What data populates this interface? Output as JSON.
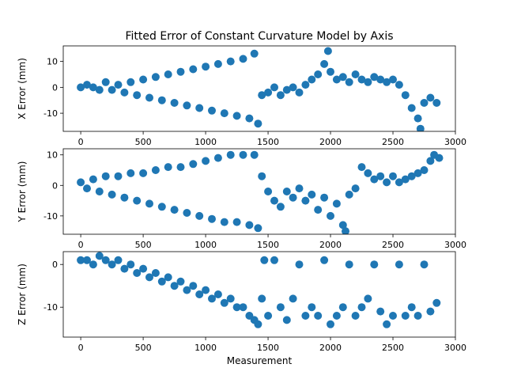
{
  "figure": {
    "title": "Fitted Error of Constant Curvature Model by Axis",
    "marker_color": "#1f77b4"
  },
  "chart_data": [
    {
      "type": "scatter",
      "ylabel": "X Error (mm)",
      "xlabel": "",
      "xlim": [
        -140,
        3000
      ],
      "ylim": [
        -17,
        16
      ],
      "xticks": [
        0,
        500,
        1000,
        1500,
        2000,
        2500,
        3000
      ],
      "yticks": [
        -10,
        0,
        10
      ],
      "series": [
        {
          "values": [
            [
              0,
              0
            ],
            [
              50,
              1
            ],
            [
              100,
              0
            ],
            [
              150,
              -1
            ],
            [
              200,
              2
            ],
            [
              250,
              -1
            ],
            [
              300,
              1
            ],
            [
              350,
              -2
            ],
            [
              400,
              2
            ],
            [
              450,
              -3
            ],
            [
              500,
              3
            ],
            [
              550,
              -4
            ],
            [
              600,
              4
            ],
            [
              650,
              -5
            ],
            [
              700,
              5
            ],
            [
              750,
              -6
            ],
            [
              800,
              6
            ],
            [
              850,
              -7
            ],
            [
              900,
              7
            ],
            [
              950,
              -8
            ],
            [
              1000,
              8
            ],
            [
              1050,
              -9
            ],
            [
              1100,
              9
            ],
            [
              1150,
              -10
            ],
            [
              1200,
              10
            ],
            [
              1250,
              -11
            ],
            [
              1300,
              11
            ],
            [
              1350,
              -12
            ],
            [
              1390,
              13
            ],
            [
              1420,
              -14
            ],
            [
              1450,
              -3
            ],
            [
              1500,
              -2
            ],
            [
              1550,
              0
            ],
            [
              1600,
              -3
            ],
            [
              1650,
              -1
            ],
            [
              1700,
              0
            ],
            [
              1750,
              -2
            ],
            [
              1800,
              1
            ],
            [
              1850,
              3
            ],
            [
              1900,
              5
            ],
            [
              1950,
              9
            ],
            [
              1980,
              14
            ],
            [
              2000,
              6
            ],
            [
              2050,
              3
            ],
            [
              2100,
              4
            ],
            [
              2150,
              2
            ],
            [
              2200,
              5
            ],
            [
              2250,
              3
            ],
            [
              2300,
              2
            ],
            [
              2350,
              4
            ],
            [
              2400,
              3
            ],
            [
              2450,
              2
            ],
            [
              2500,
              3
            ],
            [
              2550,
              1
            ],
            [
              2600,
              -3
            ],
            [
              2650,
              -8
            ],
            [
              2700,
              -12
            ],
            [
              2720,
              -16
            ],
            [
              2750,
              -6
            ],
            [
              2800,
              -4
            ],
            [
              2850,
              -6
            ]
          ]
        }
      ]
    },
    {
      "type": "scatter",
      "ylabel": "Y Error (mm)",
      "xlabel": "",
      "xlim": [
        -140,
        3000
      ],
      "ylim": [
        -16,
        12
      ],
      "xticks": [
        0,
        500,
        1000,
        1500,
        2000,
        2500,
        3000
      ],
      "yticks": [
        -10,
        0,
        10
      ],
      "series": [
        {
          "values": [
            [
              0,
              1
            ],
            [
              50,
              -1
            ],
            [
              100,
              2
            ],
            [
              150,
              -2
            ],
            [
              200,
              3
            ],
            [
              250,
              -3
            ],
            [
              300,
              3
            ],
            [
              350,
              -4
            ],
            [
              400,
              4
            ],
            [
              450,
              -5
            ],
            [
              500,
              4
            ],
            [
              550,
              -6
            ],
            [
              600,
              5
            ],
            [
              650,
              -7
            ],
            [
              700,
              6
            ],
            [
              750,
              -8
            ],
            [
              800,
              6
            ],
            [
              850,
              -9
            ],
            [
              900,
              7
            ],
            [
              950,
              -10
            ],
            [
              1000,
              8
            ],
            [
              1050,
              -11
            ],
            [
              1100,
              9
            ],
            [
              1150,
              -12
            ],
            [
              1200,
              10
            ],
            [
              1250,
              -12
            ],
            [
              1300,
              10
            ],
            [
              1350,
              -13
            ],
            [
              1390,
              10
            ],
            [
              1420,
              -14
            ],
            [
              1450,
              3
            ],
            [
              1500,
              -2
            ],
            [
              1550,
              -5
            ],
            [
              1600,
              -7
            ],
            [
              1650,
              -2
            ],
            [
              1700,
              -4
            ],
            [
              1750,
              -1
            ],
            [
              1800,
              -5
            ],
            [
              1850,
              -3
            ],
            [
              1900,
              -8
            ],
            [
              1950,
              -4
            ],
            [
              2000,
              -10
            ],
            [
              2050,
              -6
            ],
            [
              2100,
              -13
            ],
            [
              2120,
              -15
            ],
            [
              2150,
              -3
            ],
            [
              2200,
              -1
            ],
            [
              2250,
              6
            ],
            [
              2300,
              4
            ],
            [
              2350,
              2
            ],
            [
              2400,
              3
            ],
            [
              2450,
              1
            ],
            [
              2500,
              3
            ],
            [
              2550,
              1
            ],
            [
              2600,
              2
            ],
            [
              2650,
              3
            ],
            [
              2700,
              4
            ],
            [
              2750,
              5
            ],
            [
              2800,
              8
            ],
            [
              2830,
              10
            ],
            [
              2870,
              9
            ]
          ]
        }
      ]
    },
    {
      "type": "scatter",
      "ylabel": "Z Error (mm)",
      "xlabel": "Measurement",
      "xlim": [
        -140,
        3000
      ],
      "ylim": [
        -17,
        3
      ],
      "xticks": [
        0,
        500,
        1000,
        1500,
        2000,
        2500,
        3000
      ],
      "yticks": [
        -10,
        0
      ],
      "series": [
        {
          "values": [
            [
              0,
              1
            ],
            [
              50,
              1
            ],
            [
              100,
              0
            ],
            [
              150,
              2
            ],
            [
              200,
              1
            ],
            [
              250,
              0
            ],
            [
              300,
              1
            ],
            [
              350,
              -1
            ],
            [
              400,
              0
            ],
            [
              450,
              -2
            ],
            [
              500,
              -1
            ],
            [
              550,
              -3
            ],
            [
              600,
              -2
            ],
            [
              650,
              -4
            ],
            [
              700,
              -3
            ],
            [
              750,
              -5
            ],
            [
              800,
              -4
            ],
            [
              850,
              -6
            ],
            [
              900,
              -5
            ],
            [
              950,
              -7
            ],
            [
              1000,
              -6
            ],
            [
              1050,
              -8
            ],
            [
              1100,
              -7
            ],
            [
              1150,
              -9
            ],
            [
              1200,
              -8
            ],
            [
              1250,
              -10
            ],
            [
              1300,
              -10
            ],
            [
              1350,
              -12
            ],
            [
              1390,
              -13
            ],
            [
              1420,
              -14
            ],
            [
              1450,
              -8
            ],
            [
              1470,
              1
            ],
            [
              1500,
              -12
            ],
            [
              1550,
              1
            ],
            [
              1600,
              -10
            ],
            [
              1650,
              -13
            ],
            [
              1700,
              -8
            ],
            [
              1750,
              0
            ],
            [
              1800,
              -12
            ],
            [
              1850,
              -10
            ],
            [
              1900,
              -12
            ],
            [
              1950,
              1
            ],
            [
              2000,
              -14
            ],
            [
              2050,
              -12
            ],
            [
              2100,
              -10
            ],
            [
              2150,
              0
            ],
            [
              2200,
              -12
            ],
            [
              2250,
              -10
            ],
            [
              2300,
              -8
            ],
            [
              2350,
              0
            ],
            [
              2400,
              -11
            ],
            [
              2450,
              -14
            ],
            [
              2500,
              -12
            ],
            [
              2550,
              0
            ],
            [
              2600,
              -12
            ],
            [
              2650,
              -10
            ],
            [
              2700,
              -12
            ],
            [
              2750,
              0
            ],
            [
              2800,
              -11
            ],
            [
              2850,
              -9
            ]
          ]
        }
      ]
    }
  ]
}
